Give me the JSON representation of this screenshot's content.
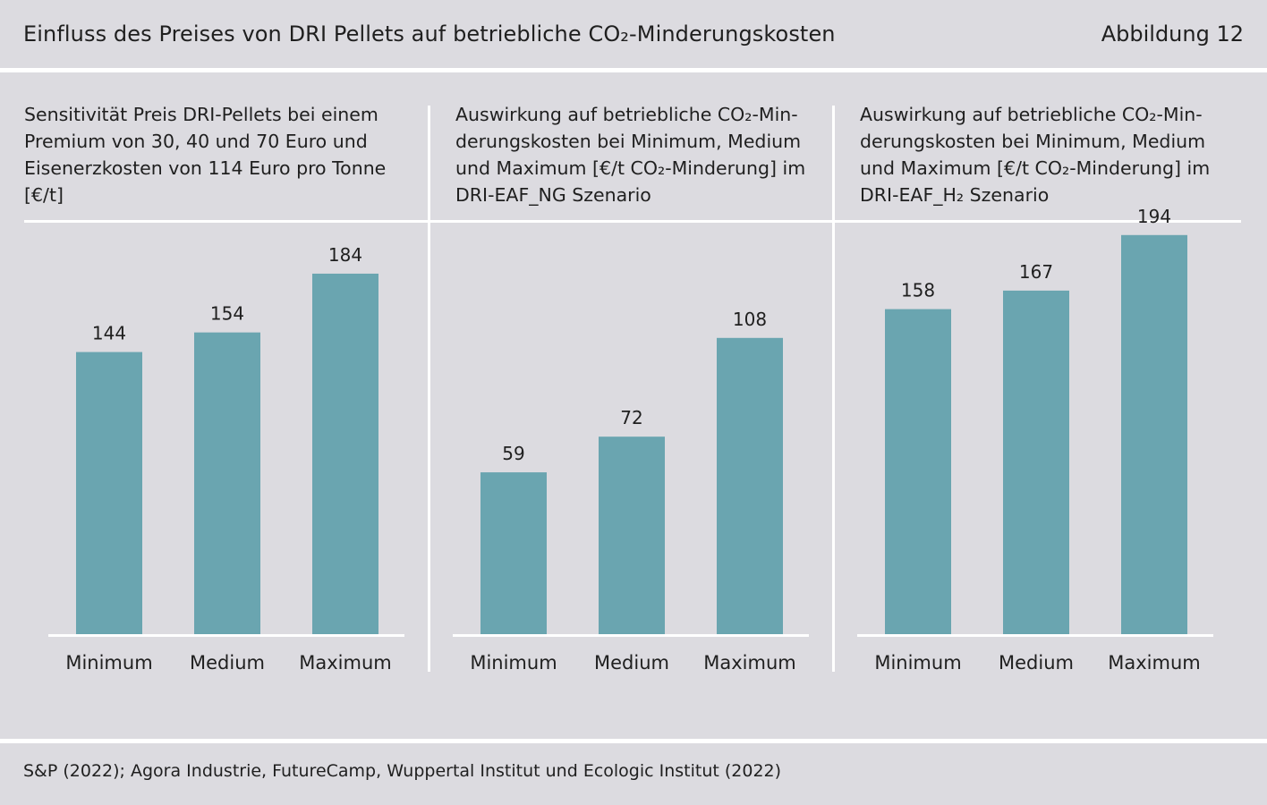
{
  "header": {
    "title": "Einfluss des Preises von DRI Pellets auf betriebliche CO₂-Minderungskosten",
    "figure_label": "Abbildung 12"
  },
  "panels": [
    {
      "title": "Sensitivität Preis DRI-Pellets bei einem\nPremium von 30, 40 und 70 Euro und\nEisenerzkosten von 114 Euro pro Tonne\n[€/t]"
    },
    {
      "title": "Auswirkung auf betriebliche CO₂-Min-\nderungskosten bei Minimum, Medium\nund Maximum [€/t CO₂-Minderung] im\nDRI-EAF_NG Szenario"
    },
    {
      "title": "Auswirkung auf betriebliche CO₂-Min-\nderungskosten bei Minimum, Medium\nund Maximum [€/t CO₂-Minderung] im\nDRI-EAF_H₂ Szenario"
    }
  ],
  "footer": {
    "source": "S&P (2022); Agora Industrie, FutureCamp, Wuppertal Institut und Ecologic Institut (2022)"
  },
  "colors": {
    "bar": "#6aa5b0",
    "background": "#dcdbe0",
    "rule": "#ffffff"
  },
  "chart_data": [
    {
      "type": "bar",
      "title": "Sensitivität Preis DRI-Pellets bei einem Premium von 30, 40 und 70 Euro und Eisenerzkosten von 114 Euro pro Tonne [€/t]",
      "categories": [
        "Minimum",
        "Medium",
        "Maximum"
      ],
      "values": [
        144,
        154,
        184
      ],
      "ylim": [
        0,
        210
      ],
      "grid": false
    },
    {
      "type": "bar",
      "title": "Auswirkung auf betriebliche CO₂-Minderungskosten bei Minimum, Medium und Maximum [€/t CO₂-Minderung] im DRI-EAF_NG Szenario",
      "categories": [
        "Minimum",
        "Medium",
        "Maximum"
      ],
      "values": [
        59,
        72,
        108
      ],
      "ylim": [
        0,
        150
      ],
      "grid": false
    },
    {
      "type": "bar",
      "title": "Auswirkung auf betriebliche CO₂-Minderungskosten bei Minimum, Medium und Maximum [€/t CO₂-Minderung] im DRI-EAF_H₂ Szenario",
      "categories": [
        "Minimum",
        "Medium",
        "Maximum"
      ],
      "values": [
        158,
        167,
        194
      ],
      "ylim": [
        0,
        200
      ],
      "grid": false
    }
  ]
}
